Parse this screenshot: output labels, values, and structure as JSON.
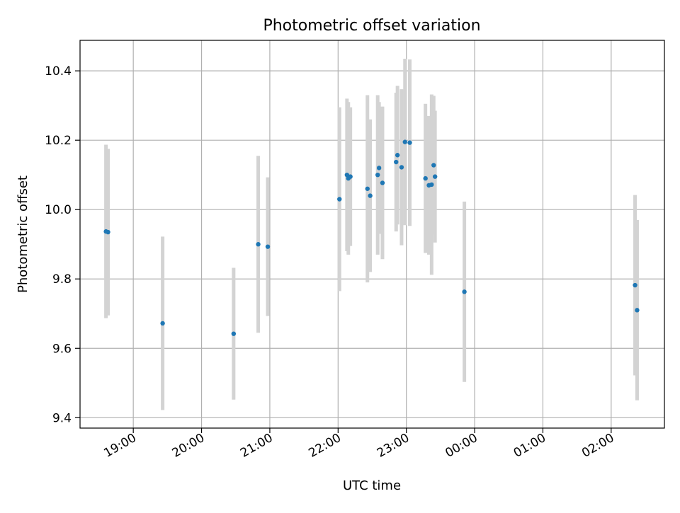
{
  "chart_data": {
    "type": "scatter",
    "title": "Photometric offset variation",
    "xlabel": "UTC time",
    "ylabel": "Photometric offset",
    "x_ticks": [
      "19:00",
      "20:00",
      "21:00",
      "22:00",
      "23:00",
      "00:00",
      "01:00",
      "02:00"
    ],
    "y_ticks": [
      "9.4",
      "9.6",
      "9.8",
      "10.0",
      "10.2",
      "10.4"
    ],
    "x_unit": "hours (UTC)",
    "xlim": [
      18.22,
      26.78
    ],
    "ylim": [
      9.37,
      10.488
    ],
    "grid": true,
    "colors": {
      "marker": "#1f77b4",
      "errorbar": "#d3d3d3",
      "grid": "#b0b0b0"
    },
    "points": [
      {
        "x": 18.6,
        "y": 9.937,
        "err": 0.25
      },
      {
        "x": 18.63,
        "y": 9.935,
        "err": 0.24
      },
      {
        "x": 19.43,
        "y": 9.672,
        "err": 0.25
      },
      {
        "x": 20.47,
        "y": 9.642,
        "err": 0.19
      },
      {
        "x": 20.83,
        "y": 9.9,
        "err": 0.255
      },
      {
        "x": 20.97,
        "y": 9.893,
        "err": 0.2
      },
      {
        "x": 22.02,
        "y": 10.03,
        "err": 0.265
      },
      {
        "x": 22.13,
        "y": 10.1,
        "err": 0.22
      },
      {
        "x": 22.15,
        "y": 10.09,
        "err": 0.22
      },
      {
        "x": 22.18,
        "y": 10.095,
        "err": 0.2
      },
      {
        "x": 22.43,
        "y": 10.06,
        "err": 0.27
      },
      {
        "x": 22.47,
        "y": 10.04,
        "err": 0.22
      },
      {
        "x": 22.58,
        "y": 10.1,
        "err": 0.23
      },
      {
        "x": 22.6,
        "y": 10.12,
        "err": 0.19
      },
      {
        "x": 22.65,
        "y": 10.077,
        "err": 0.22
      },
      {
        "x": 22.85,
        "y": 10.137,
        "err": 0.2
      },
      {
        "x": 22.87,
        "y": 10.157,
        "err": 0.2
      },
      {
        "x": 22.93,
        "y": 10.122,
        "err": 0.225
      },
      {
        "x": 22.98,
        "y": 10.195,
        "err": 0.24
      },
      {
        "x": 23.05,
        "y": 10.193,
        "err": 0.24
      },
      {
        "x": 23.28,
        "y": 10.09,
        "err": 0.215
      },
      {
        "x": 23.33,
        "y": 10.07,
        "err": 0.2
      },
      {
        "x": 23.37,
        "y": 10.072,
        "err": 0.26
      },
      {
        "x": 23.4,
        "y": 10.128,
        "err": 0.2
      },
      {
        "x": 23.42,
        "y": 10.095,
        "err": 0.19
      },
      {
        "x": 23.85,
        "y": 9.763,
        "err": 0.26
      },
      {
        "x": 26.35,
        "y": 9.782,
        "err": 0.26
      },
      {
        "x": 26.38,
        "y": 9.71,
        "err": 0.26
      }
    ]
  }
}
